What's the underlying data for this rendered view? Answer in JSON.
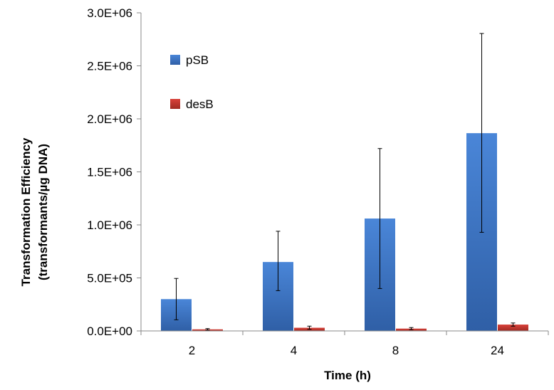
{
  "chart_data": {
    "type": "bar",
    "title": "",
    "xlabel": "Time (h)",
    "ylabel_line1": "Transformation Efficiency",
    "ylabel_line2": "(transformants/µg DNA)",
    "categories": [
      "2",
      "4",
      "8",
      "24"
    ],
    "ylim": [
      0,
      3000000
    ],
    "yticks": [
      0,
      500000,
      1000000,
      1500000,
      2000000,
      2500000,
      3000000
    ],
    "ytick_labels": [
      "0.0E+00",
      "5.0E+05",
      "1.0E+06",
      "1.5E+06",
      "2.0E+06",
      "2.5E+06",
      "3.0E+06"
    ],
    "grid": false,
    "legend_position": "top-left",
    "series": [
      {
        "name": "pSB",
        "color": "#3c74c4",
        "values": [
          300000,
          650000,
          1060000,
          1865000
        ],
        "error_low": [
          105000,
          380000,
          400000,
          930000
        ],
        "error_high": [
          495000,
          940000,
          1720000,
          2805000
        ]
      },
      {
        "name": "desB",
        "color": "#c0392b",
        "values": [
          15000,
          30000,
          22000,
          60000
        ],
        "error_low": [
          8000,
          15000,
          12000,
          45000
        ],
        "error_high": [
          22000,
          45000,
          32000,
          75000
        ]
      }
    ]
  }
}
